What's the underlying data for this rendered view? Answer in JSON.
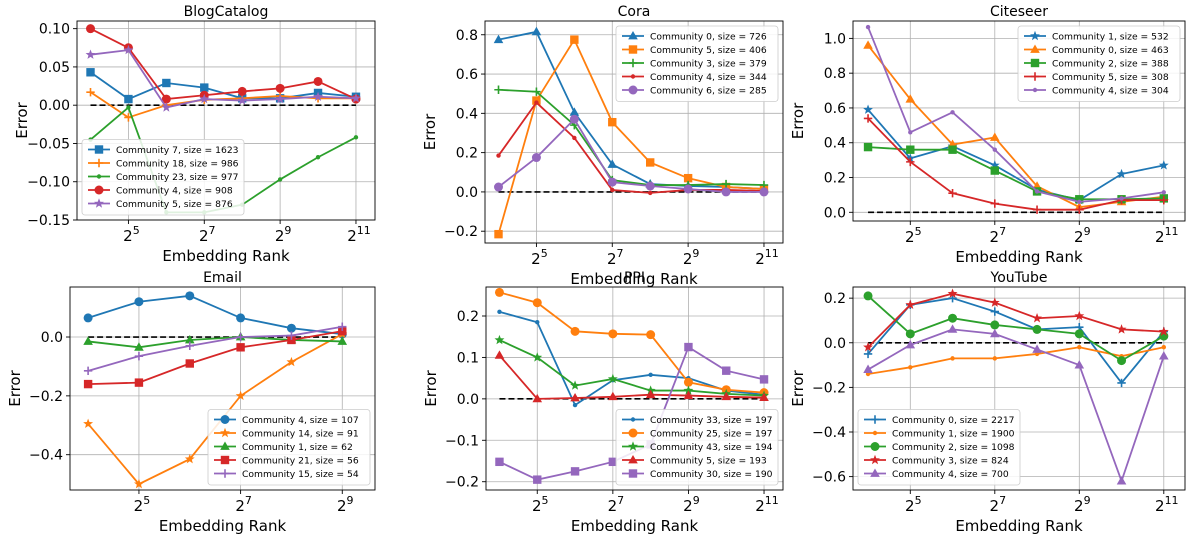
{
  "figure": {
    "ylabel": "Error",
    "xlabel": "Embedding Rank",
    "xticks": [
      32,
      128,
      512,
      2048
    ],
    "xtick_base": "2",
    "xtick_exponents": [
      "5",
      "7",
      "9",
      "11"
    ]
  },
  "colors": {
    "blue": "#1f77b4",
    "orange": "#ff7f0e",
    "green": "#2ca02c",
    "red": "#d62728",
    "purple": "#9467bd"
  },
  "chart_data": [
    {
      "type": "line",
      "title": "BlogCatalog",
      "xscale": "log2",
      "xlim": [
        12.5,
        2900
      ],
      "ylim": [
        -0.15,
        0.11
      ],
      "yticks": [
        -0.15,
        -0.1,
        -0.05,
        0.0,
        0.05,
        0.1
      ],
      "ytick_decimals": 2,
      "x": [
        16,
        32,
        64,
        128,
        256,
        512,
        1024,
        2048
      ],
      "legend": "lower-left",
      "series": [
        {
          "name": "Community 7, size = 1623",
          "color": "blue",
          "marker": "square",
          "values": [
            0.043,
            0.008,
            0.029,
            0.023,
            0.009,
            0.009,
            0.016,
            0.011
          ]
        },
        {
          "name": "Community 18, size = 986",
          "color": "orange",
          "marker": "plus",
          "values": [
            0.017,
            -0.016,
            0.0,
            0.007,
            0.009,
            0.012,
            0.009,
            0.009
          ]
        },
        {
          "name": "Community 23, size = 977",
          "color": "green",
          "marker": "dot",
          "values": [
            -0.045,
            -0.003,
            -0.14,
            -0.14,
            -0.13,
            -0.097,
            -0.068,
            -0.042
          ]
        },
        {
          "name": "Community 4, size = 908",
          "color": "red",
          "marker": "circle",
          "values": [
            0.1,
            0.075,
            0.008,
            0.013,
            0.018,
            0.022,
            0.031,
            0.008
          ]
        },
        {
          "name": "Community 5, size = 876",
          "color": "purple",
          "marker": "star",
          "values": [
            0.066,
            0.072,
            -0.003,
            0.008,
            0.006,
            0.008,
            0.011,
            0.009
          ]
        }
      ]
    },
    {
      "type": "line",
      "title": "Cora",
      "xscale": "log2",
      "xlim": [
        12.5,
        2900
      ],
      "ylim": [
        -0.26,
        0.87
      ],
      "yticks": [
        -0.2,
        0.0,
        0.2,
        0.4,
        0.6,
        0.8
      ],
      "ytick_decimals": 1,
      "x": [
        16,
        32,
        64,
        128,
        256,
        512,
        1024,
        2048
      ],
      "legend": "upper-right",
      "series": [
        {
          "name": "Community 0, size = 726",
          "color": "blue",
          "marker": "triangle-up",
          "values": [
            0.775,
            0.815,
            0.405,
            0.14,
            0.04,
            0.03,
            0.025,
            0.015
          ]
        },
        {
          "name": "Community 5, size = 406",
          "color": "orange",
          "marker": "square",
          "values": [
            -0.215,
            0.465,
            0.775,
            0.355,
            0.15,
            0.07,
            0.025,
            0.015
          ]
        },
        {
          "name": "Community 3, size = 379",
          "color": "green",
          "marker": "plus",
          "values": [
            0.52,
            0.51,
            0.34,
            0.06,
            0.035,
            0.035,
            0.04,
            0.035
          ]
        },
        {
          "name": "Community 4, size = 344",
          "color": "red",
          "marker": "dot",
          "values": [
            0.185,
            0.455,
            0.275,
            0.01,
            -0.005,
            0.01,
            0.01,
            0.005
          ]
        },
        {
          "name": "Community 6, size = 285",
          "color": "purple",
          "marker": "circle",
          "values": [
            0.025,
            0.175,
            0.37,
            0.05,
            0.03,
            0.015,
            0.0,
            0.0
          ]
        }
      ]
    },
    {
      "type": "line",
      "title": "Citeseer",
      "xscale": "log2",
      "xlim": [
        12.5,
        2900
      ],
      "ylim": [
        -0.05,
        1.1
      ],
      "yticks": [
        0.0,
        0.2,
        0.4,
        0.6,
        0.8,
        1.0
      ],
      "ytick_decimals": 1,
      "x": [
        16,
        32,
        64,
        128,
        256,
        512,
        1024,
        2048
      ],
      "legend": "upper-right",
      "series": [
        {
          "name": "Community 1, size = 532",
          "color": "blue",
          "marker": "star",
          "values": [
            0.59,
            0.31,
            0.38,
            0.27,
            0.13,
            0.07,
            0.22,
            0.27
          ]
        },
        {
          "name": "Community 0, size = 463",
          "color": "orange",
          "marker": "triangle-up",
          "values": [
            0.96,
            0.65,
            0.39,
            0.43,
            0.15,
            0.03,
            0.06,
            0.09
          ]
        },
        {
          "name": "Community 2, size = 388",
          "color": "green",
          "marker": "square",
          "values": [
            0.375,
            0.36,
            0.36,
            0.24,
            0.12,
            0.075,
            0.075,
            0.08
          ]
        },
        {
          "name": "Community 5, size = 308",
          "color": "red",
          "marker": "plus",
          "values": [
            0.54,
            0.29,
            0.11,
            0.05,
            0.015,
            0.015,
            0.07,
            0.07
          ]
        },
        {
          "name": "Community 4, size = 304",
          "color": "purple",
          "marker": "dot",
          "values": [
            1.065,
            0.46,
            0.575,
            0.36,
            0.12,
            0.06,
            0.08,
            0.115
          ]
        }
      ]
    },
    {
      "type": "line",
      "title": "Email",
      "xscale": "log2",
      "xlim": [
        12.5,
        800
      ],
      "ylim": [
        -0.52,
        0.17
      ],
      "yticks": [
        -0.4,
        -0.2,
        0.0
      ],
      "ytick_decimals": 1,
      "x": [
        16,
        32,
        64,
        128,
        256,
        512
      ],
      "legend": "lower-right",
      "series": [
        {
          "name": "Community 4, size = 107",
          "color": "blue",
          "marker": "circle",
          "values": [
            0.065,
            0.12,
            0.14,
            0.065,
            0.03,
            0.01
          ]
        },
        {
          "name": "Community 14, size = 91",
          "color": "orange",
          "marker": "star",
          "values": [
            -0.295,
            -0.5,
            -0.415,
            -0.2,
            -0.085,
            0.01
          ]
        },
        {
          "name": "Community 1, size = 62",
          "color": "green",
          "marker": "triangle-up",
          "values": [
            -0.015,
            -0.035,
            -0.01,
            0.0,
            -0.01,
            -0.015
          ]
        },
        {
          "name": "Community 21, size = 56",
          "color": "red",
          "marker": "square",
          "values": [
            -0.16,
            -0.155,
            -0.09,
            -0.035,
            -0.01,
            0.02
          ]
        },
        {
          "name": "Community 15, size = 54",
          "color": "purple",
          "marker": "plus",
          "values": [
            -0.115,
            -0.065,
            -0.03,
            0.0,
            0.005,
            0.035
          ]
        }
      ]
    },
    {
      "type": "line",
      "title": "PPI",
      "xscale": "log2",
      "xlim": [
        12.5,
        2900
      ],
      "ylim": [
        -0.22,
        0.27
      ],
      "yticks": [
        -0.2,
        -0.1,
        0.0,
        0.1,
        0.2
      ],
      "ytick_decimals": 1,
      "x": [
        16,
        32,
        64,
        128,
        256,
        512,
        1024,
        2048
      ],
      "legend": "lower-right",
      "series": [
        {
          "name": "Community 33, size = 197",
          "color": "blue",
          "marker": "dot",
          "values": [
            0.21,
            0.185,
            -0.015,
            0.045,
            0.058,
            0.05,
            0.02,
            0.01
          ]
        },
        {
          "name": "Community 25, size = 197",
          "color": "orange",
          "marker": "circle",
          "values": [
            0.257,
            0.232,
            0.163,
            0.157,
            0.155,
            0.04,
            0.022,
            0.015
          ]
        },
        {
          "name": "Community 43, size = 194",
          "color": "green",
          "marker": "star",
          "values": [
            0.142,
            0.1,
            0.032,
            0.048,
            0.02,
            0.02,
            0.012,
            0.008
          ]
        },
        {
          "name": "Community 5, size = 193",
          "color": "red",
          "marker": "triangle-up",
          "values": [
            0.105,
            0.0,
            0.002,
            0.005,
            0.01,
            0.008,
            0.005,
            0.003
          ]
        },
        {
          "name": "Community 30, size = 190",
          "color": "purple",
          "marker": "square",
          "values": [
            -0.152,
            -0.195,
            -0.175,
            -0.152,
            -0.11,
            0.125,
            0.068,
            0.047
          ]
        }
      ]
    },
    {
      "type": "line",
      "title": "YouTube",
      "xscale": "log2",
      "xlim": [
        12.5,
        2900
      ],
      "ylim": [
        -0.66,
        0.25
      ],
      "yticks": [
        -0.6,
        -0.4,
        -0.2,
        0.0,
        0.2
      ],
      "ytick_decimals": 1,
      "x": [
        16,
        32,
        64,
        128,
        256,
        512,
        1024,
        2048
      ],
      "legend": "lower-left",
      "series": [
        {
          "name": "Community 0, size = 2217",
          "color": "blue",
          "marker": "plus",
          "values": [
            -0.05,
            0.17,
            0.2,
            0.14,
            0.06,
            0.07,
            -0.18,
            0.05
          ]
        },
        {
          "name": "Community 1, size = 1900",
          "color": "orange",
          "marker": "dot",
          "values": [
            -0.14,
            -0.11,
            -0.07,
            -0.07,
            -0.05,
            -0.02,
            -0.06,
            -0.02
          ]
        },
        {
          "name": "Community 2, size = 1098",
          "color": "green",
          "marker": "circle",
          "values": [
            0.21,
            0.04,
            0.11,
            0.08,
            0.06,
            0.04,
            -0.08,
            0.03
          ]
        },
        {
          "name": "Community 3, size = 824",
          "color": "red",
          "marker": "star",
          "values": [
            -0.02,
            0.17,
            0.22,
            0.18,
            0.11,
            0.12,
            0.06,
            0.05
          ]
        },
        {
          "name": "Community 4, size = 700",
          "color": "purple",
          "marker": "triangle-up",
          "values": [
            -0.12,
            -0.01,
            0.06,
            0.04,
            -0.03,
            -0.1,
            -0.62,
            -0.06
          ]
        }
      ]
    }
  ]
}
